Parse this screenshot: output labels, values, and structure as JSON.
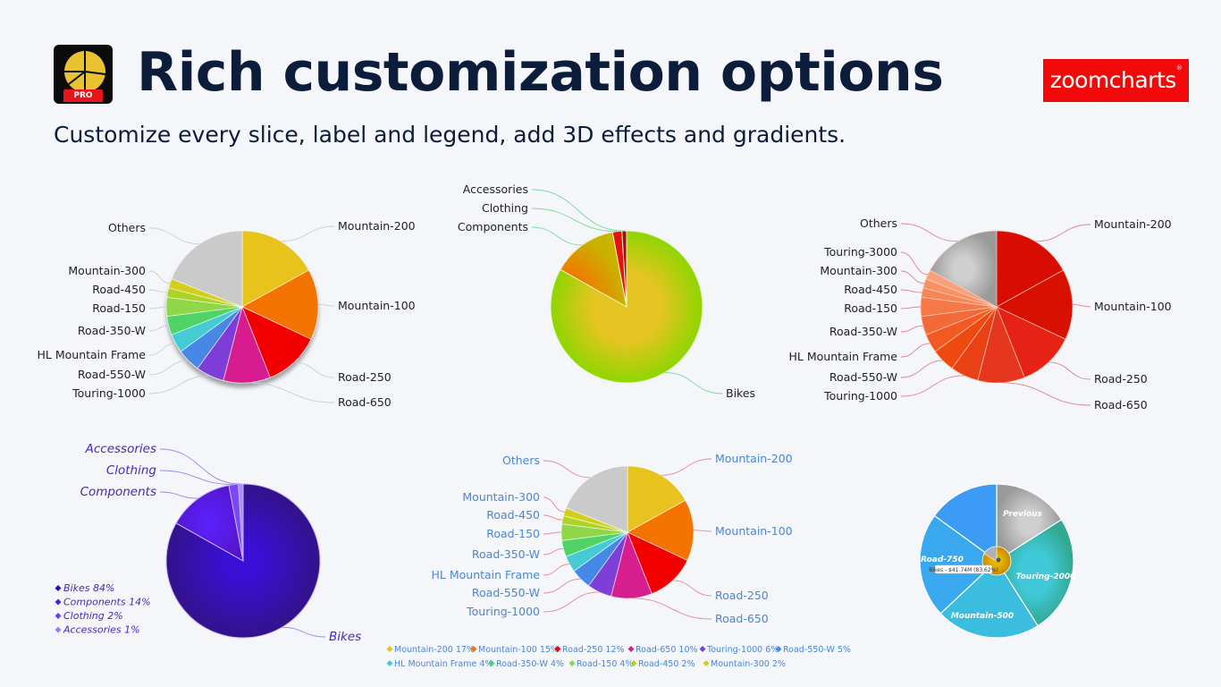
{
  "header": {
    "app_logo_badge": "PRO",
    "title": "Rich customization options",
    "subtitle": "Customize every slice, label and legend, add 3D effects and gradients.",
    "brand_logo": "zoomcharts",
    "brand_color": "#f20a0a"
  },
  "chart_data": [
    {
      "type": "pie",
      "title": "",
      "style": "3D shadow",
      "label_color": "#222222",
      "categories": [
        "Mountain-200",
        "Mountain-100",
        "Road-250",
        "Road-650",
        "Touring-1000",
        "Road-550-W",
        "HL Mountain Frame",
        "Road-350-W",
        "Road-150",
        "Road-450",
        "Mountain-300",
        "Others"
      ],
      "values": [
        17,
        15,
        12,
        10,
        6,
        5,
        4,
        4,
        4,
        2,
        2,
        19
      ],
      "colors": [
        "#e8c31e",
        "#f57300",
        "#f20000",
        "#d61e8f",
        "#7e3ed8",
        "#4688e6",
        "#44cbd4",
        "#4fd366",
        "#8fd648",
        "#aed325",
        "#d2cf1c",
        "#cacaca"
      ]
    },
    {
      "type": "pie",
      "title": "",
      "style": "radial gradient",
      "label_color": "#222222",
      "categories": [
        "Bikes",
        "Components",
        "Clothing",
        "Accessories"
      ],
      "values": [
        84,
        14,
        2,
        1
      ],
      "colors": [
        "#e6c421",
        "#f57300",
        "#e8100e",
        "#a01010"
      ],
      "outer_color": "#8ed600"
    },
    {
      "type": "pie",
      "title": "",
      "style": "red gradient",
      "label_color": "#222222",
      "categories": [
        "Mountain-200",
        "Mountain-100",
        "Road-250",
        "Road-650",
        "Touring-1000",
        "Road-550-W",
        "HL Mountain Frame",
        "Road-350-W",
        "Road-150",
        "Road-450",
        "Mountain-300",
        "Touring-3000",
        "Others"
      ],
      "values": [
        17,
        15,
        12,
        10,
        6,
        5,
        4,
        4,
        4,
        2,
        2,
        2,
        17
      ],
      "colors": [
        "#d80c00",
        "#d81000",
        "#e52214",
        "#e6361e",
        "#ea4015",
        "#ee4a10",
        "#f25a22",
        "#f26a38",
        "#f47848",
        "#f58658",
        "#f69266",
        "#f8a07a",
        "#bdbdbd"
      ]
    },
    {
      "type": "pie",
      "title": "",
      "style": "purple gradient",
      "label_color": "#4a28b8",
      "categories": [
        "Bikes",
        "Components",
        "Clothing",
        "Accessories"
      ],
      "values": [
        84,
        14,
        2,
        1
      ],
      "colors": [
        "#3a0fbf",
        "#5a22ee",
        "#7a48f2",
        "#a890f5"
      ],
      "legend": [
        "Bikes 84%",
        "Components 14%",
        "Clothing 2%",
        "Accessories 1%"
      ],
      "legend_position": "bottom-left"
    },
    {
      "type": "pie",
      "title": "",
      "style": "flat",
      "label_color": "#4a86d6",
      "categories": [
        "Mountain-200",
        "Mountain-100",
        "Road-250",
        "Road-650",
        "Touring-1000",
        "Road-550-W",
        "HL Mountain Frame",
        "Road-350-W",
        "Road-150",
        "Road-450",
        "Mountain-300",
        "Others"
      ],
      "values": [
        17,
        15,
        12,
        10,
        6,
        5,
        4,
        4,
        4,
        2,
        2,
        19
      ],
      "colors": [
        "#e8c31e",
        "#f57300",
        "#f20000",
        "#d61e8f",
        "#7e3ed8",
        "#4688e6",
        "#44cbd4",
        "#4fd366",
        "#8fd648",
        "#aed325",
        "#d2cf1c",
        "#cacaca"
      ],
      "legend": [
        "Mountain-200 17%",
        "Mountain-100 15%",
        "Road-250 12%",
        "Road-650 10%",
        "Touring-1000 6%",
        "Road-550-W 5%",
        "HL Mountain Frame 4%",
        "Road-350-W 4%",
        "Road-150 4%",
        "Road-450 2%",
        "Mountain-300 2%"
      ],
      "legend_position": "bottom"
    },
    {
      "type": "pie",
      "title": "",
      "style": "drilldown",
      "label_color": "#ffffff",
      "categories": [
        "Previous",
        "Touring-2000",
        "Mountain-500",
        "Road-750",
        ""
      ],
      "values": [
        16,
        25,
        22,
        22,
        15
      ],
      "colors": [
        "#bdbdbd",
        "#37c2a8",
        "#3bbde0",
        "#3aa8ee",
        "#3c9cf5"
      ],
      "tooltip": "Bikes - $41.74M (83.62%)",
      "center_color": "#e3a400"
    }
  ]
}
